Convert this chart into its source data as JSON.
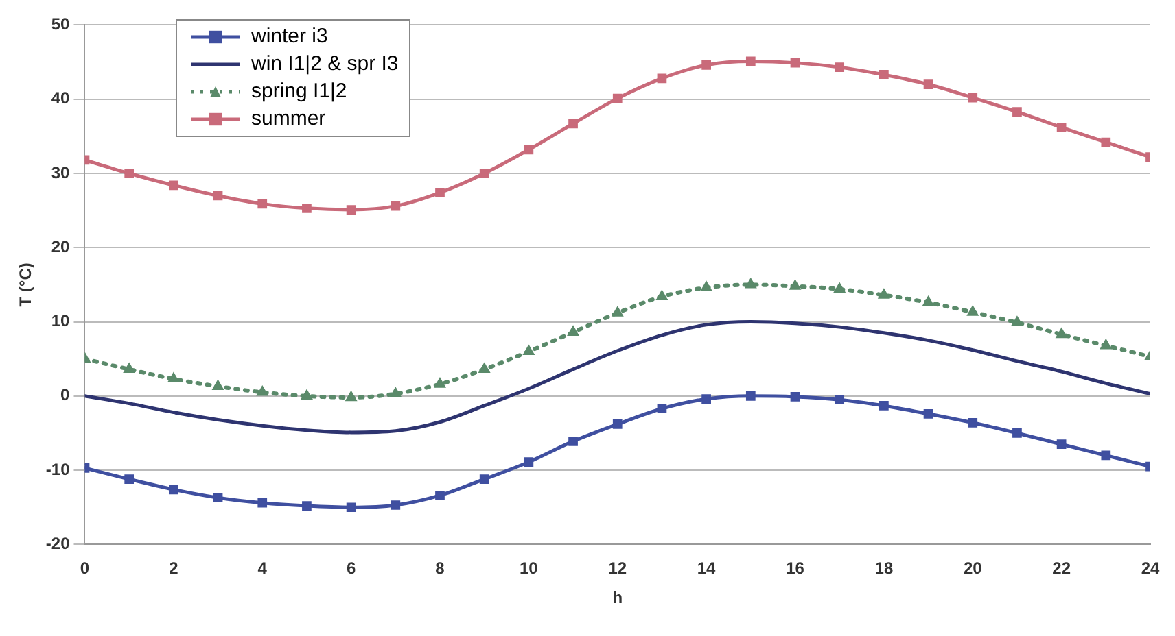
{
  "chart_data": {
    "type": "line",
    "xlabel": "h",
    "ylabel": "T (°C)",
    "x": [
      0,
      1,
      2,
      3,
      4,
      5,
      6,
      7,
      8,
      9,
      10,
      11,
      12,
      13,
      14,
      15,
      16,
      17,
      18,
      19,
      20,
      21,
      22,
      23,
      24
    ],
    "xlim": [
      0,
      24
    ],
    "xticks": [
      0,
      2,
      4,
      6,
      8,
      10,
      12,
      14,
      16,
      18,
      20,
      22,
      24
    ],
    "ylim": [
      -20,
      50
    ],
    "yticks": [
      -20,
      -10,
      0,
      10,
      20,
      30,
      40,
      50
    ],
    "grid": "y",
    "legend": "top left",
    "series": [
      {
        "name": "winter i3",
        "color": "#3f4fa0",
        "marker": "square",
        "line_style": "solid",
        "values": [
          -9.7,
          -11.2,
          -12.6,
          -13.7,
          -14.4,
          -14.8,
          -15,
          -14.7,
          -13.4,
          -11.2,
          -8.9,
          -6.1,
          -3.8,
          -1.7,
          -0.4,
          0,
          -0.1,
          -0.5,
          -1.3,
          -2.4,
          -3.6,
          -5,
          -6.5,
          -8,
          -9.5
        ]
      },
      {
        "name": "win I1|2 & spr I3",
        "color": "#2e3470",
        "marker": "none",
        "line_style": "solid",
        "values": [
          0,
          -1,
          -2.2,
          -3.2,
          -4,
          -4.6,
          -4.9,
          -4.7,
          -3.5,
          -1.3,
          1,
          3.6,
          6.1,
          8.2,
          9.6,
          10,
          9.8,
          9.3,
          8.5,
          7.5,
          6.2,
          4.7,
          3.3,
          1.7,
          0.3
        ]
      },
      {
        "name": "spring I1|2",
        "color": "#5a8a6a",
        "marker": "triangle",
        "line_style": "dotted",
        "values": [
          5,
          3.6,
          2.3,
          1.3,
          0.5,
          0,
          -0.2,
          0.3,
          1.6,
          3.6,
          6,
          8.6,
          11.2,
          13.4,
          14.6,
          15,
          14.8,
          14.4,
          13.6,
          12.6,
          11.3,
          9.9,
          8.3,
          6.8,
          5.3
        ]
      },
      {
        "name": "summer",
        "color": "#c96a7a",
        "marker": "square",
        "line_style": "solid",
        "values": [
          31.8,
          30,
          28.4,
          27,
          25.9,
          25.3,
          25.1,
          25.6,
          27.4,
          30,
          33.2,
          36.7,
          40.1,
          42.8,
          44.6,
          45.1,
          44.9,
          44.3,
          43.3,
          42,
          40.2,
          38.3,
          36.2,
          34.2,
          32.2
        ]
      }
    ]
  }
}
